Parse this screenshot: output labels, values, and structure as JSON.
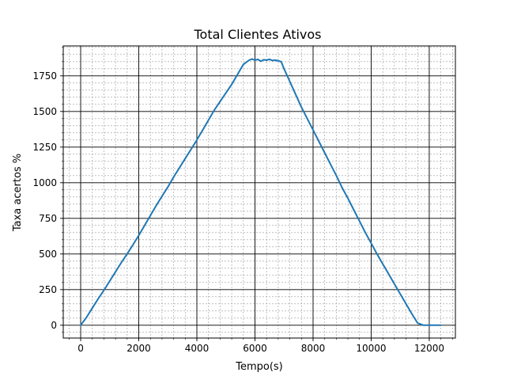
{
  "chart_data": {
    "type": "line",
    "title": "Total Clientes Ativos",
    "xlabel": "Tempo(s)",
    "ylabel": "Taxa acertos %",
    "xlim": [
      -600,
      12900
    ],
    "ylim": [
      -90,
      1960
    ],
    "xticks": [
      0,
      2000,
      4000,
      6000,
      8000,
      10000,
      12000
    ],
    "xtick_labels": [
      "0",
      "2000",
      "4000",
      "6000",
      "8000",
      "10000",
      "12000"
    ],
    "yticks": [
      0,
      250,
      500,
      750,
      1000,
      1250,
      1500,
      1750
    ],
    "ytick_labels": [
      "0",
      "250",
      "500",
      "750",
      "1000",
      "1250",
      "1500",
      "1750"
    ],
    "grid": "major and minor",
    "line_color": "#1f77b4",
    "series": [
      {
        "x": [
          0,
          200,
          400,
          600,
          800,
          1000,
          1200,
          1400,
          1600,
          1800,
          2000,
          2200,
          2400,
          2600,
          2800,
          3000,
          3200,
          3400,
          3600,
          3800,
          4000,
          4200,
          4400,
          4600,
          4800,
          5000,
          5200,
          5400,
          5600,
          5800,
          5900,
          6000,
          6100,
          6200,
          6300,
          6400,
          6500,
          6600,
          6700,
          6800,
          6900,
          7000,
          7200,
          7400,
          7600,
          7800,
          8000,
          8200,
          8400,
          8600,
          8800,
          9000,
          9200,
          9400,
          9600,
          9800,
          10000,
          10200,
          10400,
          10600,
          10800,
          11000,
          11200,
          11400,
          11600,
          11800,
          12000,
          12200,
          12400
        ],
        "y": [
          0,
          55,
          120,
          185,
          245,
          310,
          375,
          440,
          500,
          565,
          630,
          700,
          770,
          840,
          905,
          970,
          1040,
          1105,
          1170,
          1235,
          1300,
          1370,
          1440,
          1510,
          1570,
          1630,
          1690,
          1760,
          1830,
          1860,
          1868,
          1860,
          1866,
          1852,
          1863,
          1860,
          1866,
          1858,
          1860,
          1855,
          1850,
          1800,
          1710,
          1620,
          1530,
          1450,
          1370,
          1290,
          1210,
          1130,
          1050,
          965,
          890,
          810,
          730,
          650,
          575,
          500,
          430,
          360,
          290,
          220,
          150,
          80,
          15,
          0,
          0,
          0,
          0
        ]
      }
    ]
  }
}
